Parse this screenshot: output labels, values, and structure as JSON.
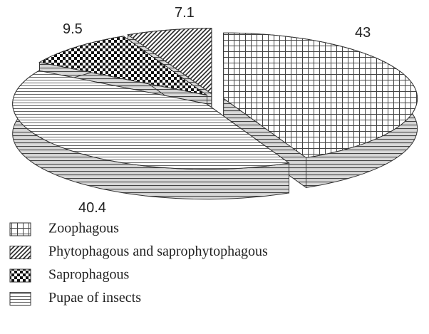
{
  "chart_data": {
    "type": "pie",
    "series": [
      {
        "name": "Zoophagous",
        "values": [
          43
        ],
        "pattern": "grid"
      },
      {
        "name": "Phytophagous and saprophytophagous",
        "values": [
          7.1
        ],
        "pattern": "hatch"
      },
      {
        "name": "Saprophagous",
        "values": [
          9.5
        ],
        "pattern": "checker"
      },
      {
        "name": "Pupae of insects",
        "values": [
          40.4
        ],
        "pattern": "lines"
      }
    ],
    "legend": "bottom-left"
  }
}
